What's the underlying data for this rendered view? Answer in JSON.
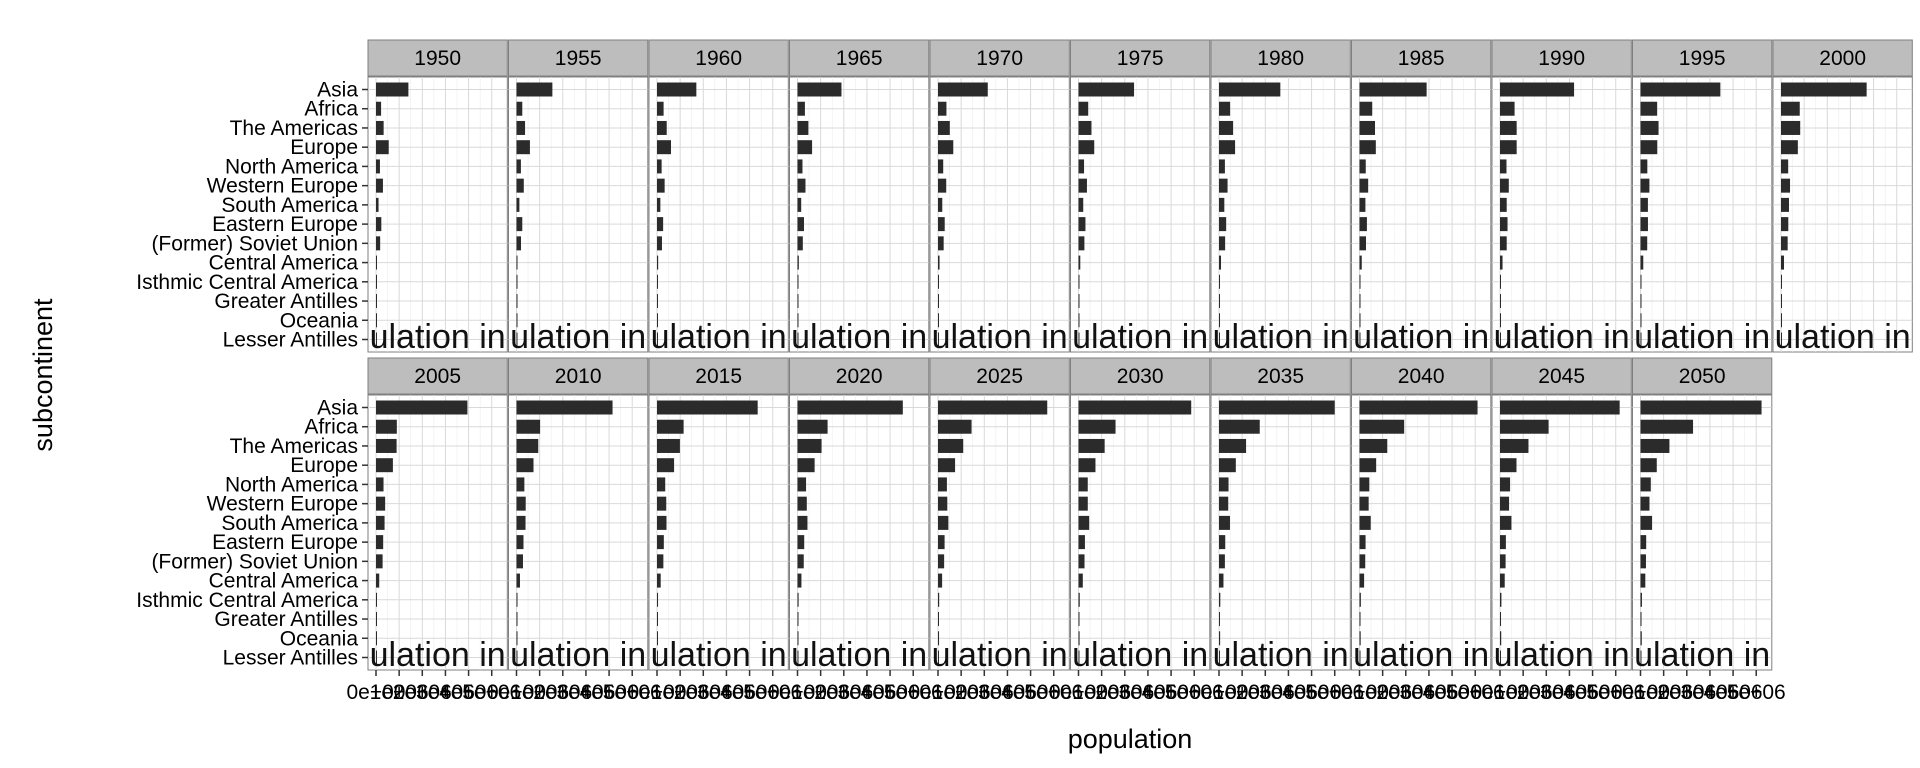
{
  "chart_data": {
    "type": "bar",
    "orientation": "horizontal",
    "facet_by": "year",
    "xlabel": "population",
    "ylabel": "subcontinent",
    "categories": [
      "Asia",
      "Africa",
      "The Americas",
      "Europe",
      "North America",
      "Western Europe",
      "South America",
      "Eastern Europe",
      "(Former) Soviet Union",
      "Central America",
      "Isthmic Central America",
      "Greater Antilles",
      "Oceania",
      "Lesser Antilles"
    ],
    "x_tick_labels": [
      "0e+00",
      "1e+06",
      "2e+06",
      "3e+06",
      "4e+06",
      "5e+06"
    ],
    "x_tick_values": [
      0,
      1000000,
      2000000,
      3000000,
      4000000,
      5000000
    ],
    "xlim": [
      0,
      5500000
    ],
    "clipped_text": "ulation in",
    "grid": true,
    "panels": [
      {
        "year": "1950",
        "values": [
          1400000,
          220000,
          330000,
          550000,
          170000,
          300000,
          110000,
          230000,
          180000,
          37000,
          9000,
          14000,
          13000,
          2000
        ]
      },
      {
        "year": "1955",
        "values": [
          1550000,
          250000,
          370000,
          580000,
          190000,
          315000,
          125000,
          250000,
          195000,
          42000,
          10000,
          16000,
          14000,
          2200
        ]
      },
      {
        "year": "1960",
        "values": [
          1700000,
          285000,
          420000,
          605000,
          200000,
          330000,
          145000,
          265000,
          215000,
          50000,
          12000,
          18000,
          16000,
          2400
        ]
      },
      {
        "year": "1965",
        "values": [
          1900000,
          320000,
          470000,
          630000,
          215000,
          345000,
          160000,
          280000,
          230000,
          57000,
          14000,
          20000,
          17000,
          2600
        ]
      },
      {
        "year": "1970",
        "values": [
          2150000,
          365000,
          510000,
          660000,
          225000,
          355000,
          185000,
          290000,
          245000,
          67000,
          16000,
          22000,
          19000,
          2800
        ]
      },
      {
        "year": "1975",
        "values": [
          2400000,
          420000,
          560000,
          680000,
          240000,
          365000,
          205000,
          300000,
          255000,
          77000,
          19000,
          24000,
          21000,
          3000
        ]
      },
      {
        "year": "1980",
        "values": [
          2650000,
          480000,
          610000,
          695000,
          255000,
          370000,
          230000,
          310000,
          265000,
          87000,
          22000,
          26000,
          23000,
          3200
        ]
      },
      {
        "year": "1985",
        "values": [
          2900000,
          550000,
          670000,
          705000,
          270000,
          375000,
          255000,
          320000,
          280000,
          97000,
          25000,
          28000,
          25000,
          3400
        ]
      },
      {
        "year": "1990",
        "values": [
          3200000,
          630000,
          720000,
          720000,
          280000,
          380000,
          290000,
          325000,
          290000,
          110000,
          28000,
          30000,
          27000,
          3600
        ]
      },
      {
        "year": "1995",
        "values": [
          3450000,
          720000,
          780000,
          725000,
          295000,
          385000,
          320000,
          322000,
          290000,
          120000,
          31000,
          32000,
          29000,
          3800
        ]
      },
      {
        "year": "2000",
        "values": [
          3700000,
          810000,
          830000,
          728000,
          310000,
          390000,
          345000,
          315000,
          288000,
          130000,
          35000,
          34000,
          31000,
          4000
        ]
      },
      {
        "year": "2005",
        "values": [
          3950000,
          900000,
          890000,
          730000,
          325000,
          395000,
          370000,
          310000,
          285000,
          140000,
          38000,
          36000,
          33000,
          4200
        ]
      },
      {
        "year": "2010",
        "values": [
          4150000,
          1020000,
          940000,
          735000,
          340000,
          398000,
          390000,
          302000,
          280000,
          150000,
          41000,
          38000,
          36000,
          4300
        ]
      },
      {
        "year": "2015",
        "values": [
          4350000,
          1150000,
          990000,
          738000,
          355000,
          400000,
          410000,
          295000,
          275000,
          160000,
          45000,
          39000,
          39000,
          4500
        ]
      },
      {
        "year": "2020",
        "values": [
          4550000,
          1300000,
          1040000,
          740000,
          370000,
          402000,
          430000,
          290000,
          270000,
          170000,
          48000,
          40000,
          42000,
          4600
        ]
      },
      {
        "year": "2025",
        "values": [
          4720000,
          1450000,
          1090000,
          738000,
          385000,
          402000,
          448000,
          285000,
          265000,
          178000,
          51000,
          41000,
          45000,
          4700
        ]
      },
      {
        "year": "2030",
        "values": [
          4870000,
          1600000,
          1130000,
          733000,
          400000,
          401000,
          462000,
          278000,
          260000,
          186000,
          54000,
          42000,
          47000,
          4800
        ]
      },
      {
        "year": "2035",
        "values": [
          5000000,
          1760000,
          1170000,
          727000,
          412000,
          399000,
          474000,
          270000,
          254000,
          193000,
          57000,
          43000,
          49000,
          4850
        ]
      },
      {
        "year": "2040",
        "values": [
          5100000,
          1930000,
          1200000,
          720000,
          424000,
          396000,
          485000,
          262000,
          248000,
          199000,
          59000,
          43500,
          51000,
          4900
        ]
      },
      {
        "year": "2045",
        "values": [
          5170000,
          2100000,
          1230000,
          712000,
          435000,
          392000,
          494000,
          254000,
          242000,
          204000,
          61000,
          44000,
          53000,
          4950
        ]
      },
      {
        "year": "2050",
        "values": [
          5230000,
          2270000,
          1250000,
          703000,
          445000,
          388000,
          500000,
          246000,
          236000,
          208000,
          63000,
          44000,
          55000,
          5000
        ]
      }
    ]
  }
}
